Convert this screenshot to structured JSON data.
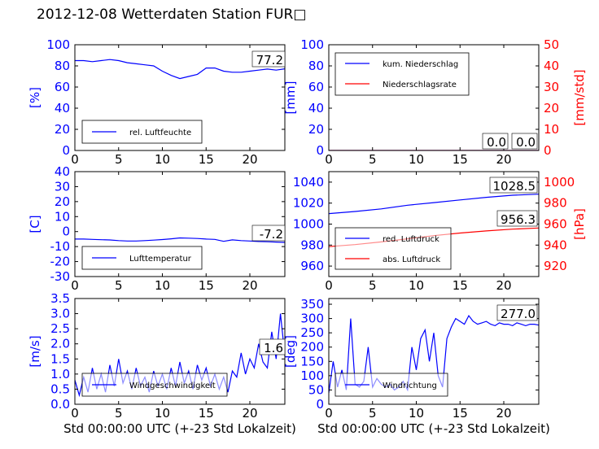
{
  "title": "2012-12-08 Wetterdaten Station FUR□",
  "colors": {
    "left_axis": "#0000ff",
    "right_axis": "#ff0000",
    "line_blue": "#0000ff",
    "line_red": "#ff0000"
  },
  "chart_data": [
    {
      "type": "line",
      "xlim": [
        0,
        24
      ],
      "xticks": [
        0,
        5,
        10,
        15,
        20
      ],
      "ylim": [
        0,
        100
      ],
      "yticks": [
        0,
        20,
        40,
        60,
        80,
        100
      ],
      "ylabel": "[%]",
      "legend": [
        "rel. Luftfeuchte"
      ],
      "legend_position": "lower-left",
      "annotations": [
        "77.2"
      ],
      "series": [
        {
          "name": "rel. Luftfeuchte",
          "axis": "left",
          "color": "#0000ff",
          "x": [
            0,
            1,
            2,
            3,
            4,
            5,
            6,
            7,
            8,
            9,
            10,
            11,
            12,
            13,
            14,
            15,
            16,
            17,
            18,
            19,
            20,
            21,
            22,
            23,
            24
          ],
          "y": [
            85,
            85,
            84,
            85,
            86,
            85,
            83,
            82,
            81,
            80,
            75,
            71,
            68,
            70,
            72,
            78,
            78,
            75,
            74,
            74,
            75,
            76,
            77,
            76,
            77.2
          ]
        }
      ]
    },
    {
      "type": "line",
      "xlim": [
        0,
        24
      ],
      "xticks": [
        0,
        5,
        10,
        15,
        20
      ],
      "ylim": [
        0,
        100
      ],
      "yticks": [
        0,
        20,
        40,
        60,
        80,
        100
      ],
      "ylabel": "[mm]",
      "ylim_right": [
        0,
        50
      ],
      "yticks_right": [
        0,
        10,
        20,
        30,
        40,
        50
      ],
      "ylabel_right": "[mm/std]",
      "legend": [
        "kum. Niederschlag",
        "Niederschlagsrate"
      ],
      "legend_position": "upper-left",
      "annotations": [
        "0.0",
        "0.0"
      ],
      "series": [
        {
          "name": "kum. Niederschlag",
          "axis": "left",
          "color": "#0000ff",
          "x": [
            0,
            24
          ],
          "y": [
            0,
            0
          ]
        },
        {
          "name": "Niederschlagsrate",
          "axis": "right",
          "color": "#ff0000",
          "x": [
            0,
            24
          ],
          "y": [
            0,
            0
          ]
        }
      ]
    },
    {
      "type": "line",
      "xlim": [
        0,
        24
      ],
      "xticks": [
        0,
        5,
        10,
        15,
        20
      ],
      "ylim": [
        -30,
        40
      ],
      "yticks": [
        -30,
        -20,
        -10,
        0,
        10,
        20,
        30,
        40
      ],
      "ylabel": "[C]",
      "legend": [
        "Lufttemperatur"
      ],
      "legend_position": "lower-left",
      "annotations": [
        "-7.2"
      ],
      "series": [
        {
          "name": "Lufttemperatur",
          "axis": "left",
          "color": "#0000ff",
          "x": [
            0,
            1,
            2,
            3,
            4,
            5,
            6,
            7,
            8,
            9,
            10,
            11,
            12,
            13,
            14,
            15,
            16,
            17,
            18,
            19,
            20,
            21,
            22,
            23,
            24
          ],
          "y": [
            -5,
            -5,
            -5.2,
            -5.4,
            -5.6,
            -6,
            -6.3,
            -6.3,
            -6,
            -5.7,
            -5.3,
            -4.8,
            -4.2,
            -4.4,
            -4.6,
            -5,
            -5.2,
            -6.5,
            -5.5,
            -6,
            -6.3,
            -6.6,
            -6.8,
            -7,
            -7.2
          ]
        }
      ]
    },
    {
      "type": "line",
      "xlim": [
        0,
        24
      ],
      "xticks": [
        0,
        5,
        10,
        15,
        20
      ],
      "ylim": [
        950,
        1050
      ],
      "yticks": [
        960,
        980,
        1000,
        1020,
        1040
      ],
      "ylim_right": [
        910,
        1010
      ],
      "yticks_right": [
        920,
        940,
        960,
        980,
        1000
      ],
      "ylabel_right": "[hPa]",
      "legend": [
        "red. Luftdruck",
        "abs. Luftdruck"
      ],
      "legend_position": "lower-left",
      "annotations": [
        "1028.5",
        "956.3"
      ],
      "series": [
        {
          "name": "red. Luftdruck",
          "axis": "left",
          "color": "#0000ff",
          "x": [
            0,
            3,
            6,
            9,
            12,
            15,
            18,
            21,
            24
          ],
          "y": [
            1010,
            1012,
            1014.5,
            1018,
            1020.5,
            1023,
            1025.5,
            1027.5,
            1028.5
          ]
        },
        {
          "name": "abs. Luftdruck",
          "axis": "right",
          "color": "#ff0000",
          "x": [
            0,
            3,
            6,
            9,
            12,
            15,
            18,
            21,
            24
          ],
          "y": [
            938.5,
            940.5,
            943,
            946,
            949,
            951.5,
            953.5,
            955.2,
            956.3
          ]
        }
      ]
    },
    {
      "type": "line",
      "xlim": [
        0,
        24
      ],
      "xticks": [
        0,
        5,
        10,
        15,
        20
      ],
      "ylim": [
        0,
        3.5
      ],
      "yticks": [
        0.0,
        0.5,
        1.0,
        1.5,
        2.0,
        2.5,
        3.0,
        3.5
      ],
      "ylabel": "[m/s]",
      "xlabel": "Std 00:00:00 UTC (+-23 Std Lokalzeit)",
      "legend": [
        "Windgeschwindigkeit"
      ],
      "legend_position": "lower-left",
      "annotations": [
        "1.6"
      ],
      "series": [
        {
          "name": "Windgeschwindigkeit",
          "axis": "left",
          "color": "#0000ff",
          "x": [
            0,
            0.5,
            1,
            1.5,
            2,
            2.5,
            3,
            3.5,
            4,
            4.5,
            5,
            5.5,
            6,
            6.5,
            7,
            7.5,
            8,
            8.5,
            9,
            9.5,
            10,
            10.5,
            11,
            11.5,
            12,
            12.5,
            13,
            13.5,
            14,
            14.5,
            15,
            15.5,
            16,
            16.5,
            17,
            17.5,
            18,
            18.5,
            19,
            19.5,
            20,
            20.5,
            21,
            21.5,
            22,
            22.5,
            23,
            23.5,
            24
          ],
          "y": [
            0.8,
            0.3,
            0.9,
            0.4,
            1.2,
            0.5,
            1.0,
            0.4,
            1.3,
            0.6,
            1.5,
            0.7,
            1.1,
            0.5,
            1.2,
            0.6,
            0.9,
            0.4,
            1.1,
            0.6,
            1.0,
            0.5,
            1.2,
            0.6,
            1.4,
            0.7,
            1.1,
            0.5,
            1.3,
            0.8,
            1.2,
            0.6,
            1.0,
            0.5,
            0.9,
            0.4,
            1.1,
            0.9,
            1.7,
            1.0,
            1.5,
            1.2,
            2.0,
            1.4,
            1.2,
            2.4,
            1.5,
            3.0,
            1.6
          ]
        }
      ]
    },
    {
      "type": "line",
      "xlim": [
        0,
        24
      ],
      "xticks": [
        0,
        5,
        10,
        15,
        20
      ],
      "ylim": [
        0,
        370
      ],
      "yticks": [
        0,
        50,
        100,
        150,
        200,
        250,
        300,
        350
      ],
      "ylabel": "[deg]",
      "xlabel": "Std 00:00:00 UTC (+-23 Std Lokalzeit)",
      "legend": [
        "Windrichtung"
      ],
      "legend_position": "lower-left",
      "annotations": [
        "277.0"
      ],
      "series": [
        {
          "name": "Windrichtung",
          "axis": "left",
          "color": "#0000ff",
          "x": [
            0,
            0.5,
            1,
            1.5,
            2,
            2.5,
            3,
            3.5,
            4,
            4.5,
            5,
            5.5,
            6,
            6.5,
            7,
            7.5,
            8,
            8.5,
            9,
            9.5,
            10,
            10.5,
            11,
            11.5,
            12,
            12.5,
            13,
            13.5,
            14,
            14.5,
            15,
            15.5,
            16,
            16.5,
            17,
            17.5,
            18,
            18.5,
            19,
            19.5,
            20,
            20.5,
            21,
            21.5,
            22,
            22.5,
            23,
            23.5,
            24
          ],
          "y": [
            40,
            150,
            60,
            120,
            50,
            300,
            70,
            60,
            80,
            200,
            60,
            90,
            70,
            60,
            70,
            50,
            60,
            80,
            50,
            200,
            120,
            230,
            260,
            150,
            250,
            100,
            60,
            230,
            270,
            300,
            290,
            280,
            310,
            290,
            280,
            285,
            290,
            280,
            275,
            285,
            280,
            280,
            275,
            285,
            280,
            275,
            280,
            280,
            277
          ]
        }
      ]
    }
  ]
}
